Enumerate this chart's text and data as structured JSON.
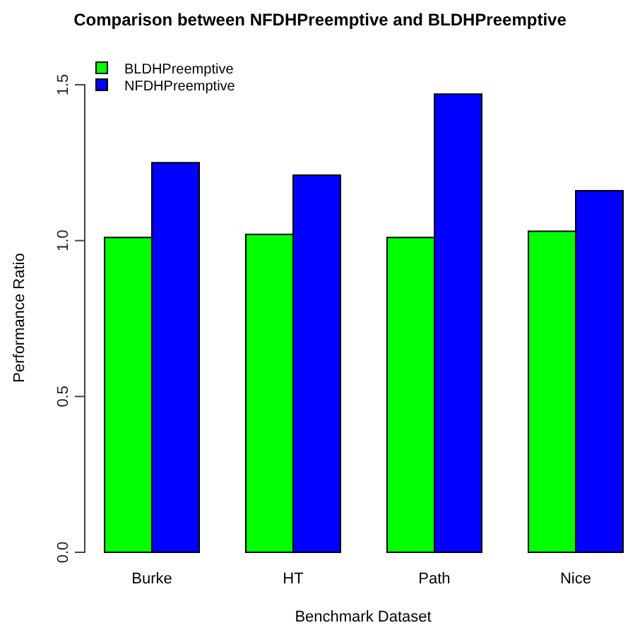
{
  "chart_data": {
    "type": "bar",
    "title": "Comparison between NFDHPreemptive and BLDHPreemptive",
    "xlabel": "Benchmark Dataset",
    "ylabel": "Performance Ratio",
    "categories": [
      "Burke",
      "HT",
      "Path",
      "Nice"
    ],
    "series": [
      {
        "name": "BLDHPreemptive",
        "color": "#00ff00",
        "values": [
          1.01,
          1.02,
          1.01,
          1.03
        ]
      },
      {
        "name": "NFDHPreemptive",
        "color": "#0000ff",
        "values": [
          1.25,
          1.21,
          1.47,
          1.16
        ]
      }
    ],
    "ylim": [
      0,
      1.5
    ],
    "yticks": [
      {
        "value": 0,
        "label": "0.0"
      },
      {
        "value": 0.5,
        "label": "0.5"
      },
      {
        "value": 1,
        "label": "1.0"
      },
      {
        "value": 1.5,
        "label": "1.5"
      }
    ],
    "legend": "top left",
    "grid": false
  }
}
